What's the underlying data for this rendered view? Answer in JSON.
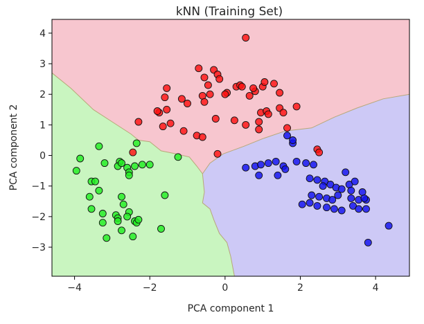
{
  "chart_data": {
    "type": "scatter",
    "title": "kNN (Training Set)",
    "xlabel": "PCA component 1",
    "ylabel": "PCA component 2",
    "xlim": [
      -4.6,
      4.9
    ],
    "ylim": [
      -3.95,
      4.45
    ],
    "xticks": [
      -4,
      -2,
      0,
      2,
      4
    ],
    "yticks": [
      -3,
      -2,
      -1,
      0,
      1,
      2,
      3,
      4
    ],
    "xtick_labels": [
      "−4",
      "−2",
      "0",
      "2",
      "4"
    ],
    "ytick_labels": [
      "−3",
      "−2",
      "−1",
      "0",
      "1",
      "2",
      "3",
      "4"
    ],
    "grid": false,
    "legend": "none",
    "region_colors": {
      "red": "#f7c6cf",
      "green": "#c9f5c0",
      "blue": "#cdc9f6"
    },
    "boundaries": {
      "red_green": [
        [
          -4.6,
          2.7
        ],
        [
          -4.1,
          2.2
        ],
        [
          -3.5,
          1.5
        ],
        [
          -3.0,
          1.1
        ],
        [
          -2.5,
          0.7
        ],
        [
          -2.3,
          0.5
        ],
        [
          -2.0,
          0.45
        ],
        [
          -1.7,
          0.15
        ],
        [
          -1.3,
          0.05
        ],
        [
          -0.95,
          -0.05
        ],
        [
          -0.75,
          -0.35
        ],
        [
          -0.6,
          -0.6
        ]
      ],
      "red_blue": [
        [
          -0.6,
          -0.6
        ],
        [
          -0.4,
          -0.25
        ],
        [
          -0.05,
          0.05
        ],
        [
          0.5,
          0.3
        ],
        [
          1.0,
          0.55
        ],
        [
          1.6,
          0.8
        ],
        [
          2.3,
          0.9
        ],
        [
          2.9,
          1.25
        ],
        [
          3.5,
          1.55
        ],
        [
          4.2,
          1.85
        ],
        [
          4.9,
          2.0
        ]
      ],
      "green_blue": [
        [
          -0.6,
          -0.6
        ],
        [
          -0.55,
          -1.2
        ],
        [
          -0.6,
          -1.55
        ],
        [
          -0.4,
          -1.75
        ],
        [
          -0.3,
          -2.1
        ],
        [
          -0.15,
          -2.55
        ],
        [
          0.05,
          -2.85
        ],
        [
          0.15,
          -3.3
        ],
        [
          0.25,
          -3.95
        ]
      ]
    },
    "series": [
      {
        "color": "#ff1111",
        "x": [
          0.55,
          -0.7,
          -0.3,
          -0.55,
          -0.2,
          -0.15,
          0.3,
          -1.55,
          -1.6,
          -0.45,
          0.05,
          -0.4,
          -0.6,
          -1.15,
          -0.55,
          -1.0,
          0.65,
          0.8,
          1.0,
          0.4,
          1.05,
          1.3,
          1.45,
          0.0,
          0.45,
          0.75,
          -1.75,
          -1.8,
          -1.55,
          -2.3,
          -0.25,
          -1.45,
          -1.65,
          -1.1,
          -0.75,
          -0.6,
          0.95,
          1.1,
          1.15,
          0.25,
          0.55,
          1.45,
          1.55,
          1.9,
          1.65,
          -2.45,
          0.9,
          0.9,
          2.45,
          2.5,
          -0.2
        ],
        "y": [
          3.85,
          2.85,
          2.8,
          2.55,
          2.65,
          2.5,
          2.25,
          2.2,
          1.9,
          2.3,
          2.05,
          2.0,
          1.95,
          1.85,
          1.75,
          1.7,
          1.95,
          2.1,
          2.25,
          2.3,
          2.4,
          2.35,
          2.05,
          2.0,
          2.25,
          2.2,
          1.4,
          1.45,
          1.5,
          1.1,
          1.2,
          1.05,
          0.95,
          0.8,
          0.65,
          0.6,
          1.4,
          1.45,
          1.35,
          1.15,
          1.0,
          1.55,
          1.4,
          1.6,
          0.9,
          0.1,
          1.1,
          0.85,
          0.2,
          0.1,
          0.05
        ]
      },
      {
        "color": "#1111ee",
        "x": [
          1.65,
          1.8,
          1.8,
          0.55,
          0.8,
          0.95,
          1.15,
          1.35,
          1.55,
          1.6,
          1.9,
          2.15,
          2.35,
          0.9,
          1.4,
          2.25,
          2.45,
          2.65,
          2.8,
          2.95,
          3.1,
          3.3,
          3.35,
          3.45,
          3.65,
          2.3,
          2.5,
          2.7,
          2.85,
          3.0,
          3.35,
          3.55,
          3.75,
          3.75,
          2.05,
          2.25,
          2.45,
          2.7,
          2.9,
          3.1,
          3.4,
          3.7,
          3.55,
          4.35,
          3.8,
          3.2,
          2.6
        ],
        "y": [
          0.65,
          0.4,
          0.5,
          -0.4,
          -0.35,
          -0.3,
          -0.25,
          -0.2,
          -0.35,
          -0.45,
          -0.2,
          -0.25,
          -0.3,
          -0.65,
          -0.65,
          -0.75,
          -0.8,
          -0.85,
          -0.95,
          -1.05,
          -1.1,
          -0.95,
          -1.15,
          -0.85,
          -1.2,
          -1.3,
          -1.35,
          -1.4,
          -1.45,
          -1.3,
          -1.4,
          -1.45,
          -1.45,
          -1.75,
          -1.6,
          -1.55,
          -1.65,
          -1.7,
          -1.75,
          -1.8,
          -1.65,
          -1.4,
          -1.75,
          -2.3,
          -2.85,
          -0.55,
          -1.0
        ]
      },
      {
        "color": "#22ee22",
        "x": [
          -3.85,
          -3.95,
          -3.55,
          -3.45,
          -3.35,
          -3.6,
          -3.55,
          -3.25,
          -3.15,
          -2.8,
          -2.85,
          -2.6,
          -2.55,
          -2.4,
          -2.2,
          -2.0,
          -1.25,
          -2.75,
          -2.75,
          -2.7,
          -2.55,
          -2.9,
          -2.6,
          -2.4,
          -2.85,
          -2.85,
          -2.75,
          -2.35,
          -2.3,
          -2.45,
          -1.6,
          -1.7,
          -2.35,
          -2.55,
          -3.35,
          -3.2,
          -3.25
        ],
        "y": [
          -0.1,
          -0.5,
          -0.85,
          -0.85,
          -1.15,
          -1.35,
          -1.75,
          -2.2,
          -2.7,
          -0.2,
          -0.35,
          -0.4,
          -0.55,
          -0.35,
          -0.3,
          -0.3,
          -0.05,
          -0.25,
          -1.35,
          -1.6,
          -1.85,
          -1.95,
          -2.0,
          -2.15,
          -2.05,
          -2.15,
          -2.45,
          -2.2,
          -2.1,
          -2.65,
          -1.3,
          -2.4,
          0.4,
          -0.65,
          0.3,
          -0.25,
          -1.9
        ]
      }
    ]
  }
}
